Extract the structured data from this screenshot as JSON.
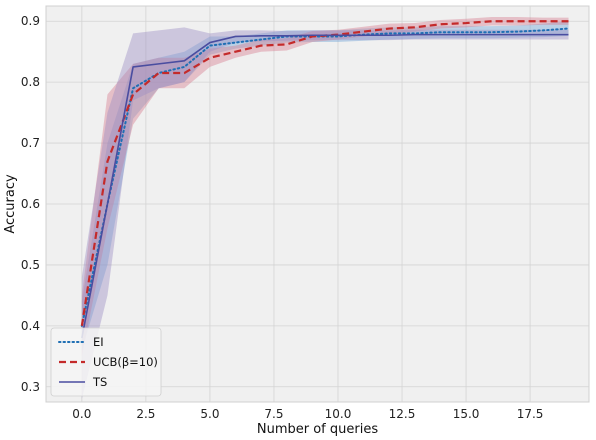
{
  "chart_data": {
    "type": "line",
    "xlabel": "Number of queries",
    "ylabel": "Accuracy",
    "xlim": [
      -1.4,
      19.8
    ],
    "ylim": [
      0.275,
      0.925
    ],
    "x_ticks": [
      0.0,
      2.5,
      5.0,
      7.5,
      10.0,
      12.5,
      15.0,
      17.5
    ],
    "x_tick_labels": [
      "0.0",
      "2.5",
      "5.0",
      "7.5",
      "10.0",
      "12.5",
      "15.0",
      "17.5"
    ],
    "y_ticks": [
      0.3,
      0.4,
      0.5,
      0.6,
      0.7,
      0.8,
      0.9
    ],
    "y_tick_labels": [
      "0.3",
      "0.4",
      "0.5",
      "0.6",
      "0.7",
      "0.8",
      "0.9"
    ],
    "grid": true,
    "legend_position": "lower-left",
    "x": [
      0,
      1,
      2,
      3,
      4,
      5,
      6,
      7,
      8,
      9,
      10,
      11,
      12,
      13,
      14,
      15,
      16,
      17,
      18,
      19
    ],
    "series": [
      {
        "name": "EI",
        "style": "dotted",
        "color": "#1f6fb4",
        "band_color": "#6fa8d8",
        "values": [
          0.4,
          0.6,
          0.79,
          0.815,
          0.825,
          0.86,
          0.865,
          0.87,
          0.875,
          0.875,
          0.875,
          0.878,
          0.88,
          0.88,
          0.882,
          0.882,
          0.882,
          0.883,
          0.885,
          0.888
        ],
        "lower": [
          0.36,
          0.5,
          0.74,
          0.79,
          0.8,
          0.845,
          0.855,
          0.86,
          0.865,
          0.866,
          0.866,
          0.868,
          0.87,
          0.871,
          0.872,
          0.872,
          0.872,
          0.873,
          0.874,
          0.876
        ],
        "upper": [
          0.44,
          0.7,
          0.83,
          0.84,
          0.85,
          0.875,
          0.875,
          0.88,
          0.885,
          0.885,
          0.885,
          0.888,
          0.89,
          0.89,
          0.892,
          0.892,
          0.892,
          0.893,
          0.896,
          0.9
        ]
      },
      {
        "name": "UCB(β=10)",
        "style": "dashed",
        "color": "#c42a2a",
        "band_color": "#d77d8f",
        "values": [
          0.4,
          0.67,
          0.78,
          0.815,
          0.815,
          0.84,
          0.85,
          0.86,
          0.862,
          0.875,
          0.878,
          0.883,
          0.888,
          0.89,
          0.895,
          0.897,
          0.9,
          0.9,
          0.9,
          0.9
        ],
        "lower": [
          0.35,
          0.56,
          0.73,
          0.79,
          0.79,
          0.825,
          0.84,
          0.85,
          0.852,
          0.866,
          0.87,
          0.875,
          0.88,
          0.883,
          0.888,
          0.89,
          0.893,
          0.893,
          0.894,
          0.894
        ],
        "upper": [
          0.45,
          0.78,
          0.83,
          0.84,
          0.84,
          0.855,
          0.86,
          0.87,
          0.872,
          0.884,
          0.886,
          0.891,
          0.896,
          0.897,
          0.902,
          0.904,
          0.907,
          0.907,
          0.906,
          0.906
        ]
      },
      {
        "name": "TS",
        "style": "solid",
        "color": "#4a4da0",
        "band_color": "#9b8cc4",
        "values": [
          0.38,
          0.6,
          0.825,
          0.83,
          0.835,
          0.865,
          0.875,
          0.876,
          0.876,
          0.877,
          0.877,
          0.877,
          0.877,
          0.878,
          0.878,
          0.878,
          0.878,
          0.878,
          0.878,
          0.878
        ],
        "lower": [
          0.28,
          0.45,
          0.77,
          0.79,
          0.8,
          0.85,
          0.865,
          0.867,
          0.868,
          0.869,
          0.869,
          0.869,
          0.869,
          0.87,
          0.87,
          0.87,
          0.87,
          0.87,
          0.87,
          0.87
        ],
        "upper": [
          0.48,
          0.75,
          0.88,
          0.885,
          0.89,
          0.88,
          0.885,
          0.885,
          0.884,
          0.885,
          0.885,
          0.885,
          0.885,
          0.886,
          0.886,
          0.886,
          0.886,
          0.886,
          0.886,
          0.886
        ]
      }
    ]
  }
}
